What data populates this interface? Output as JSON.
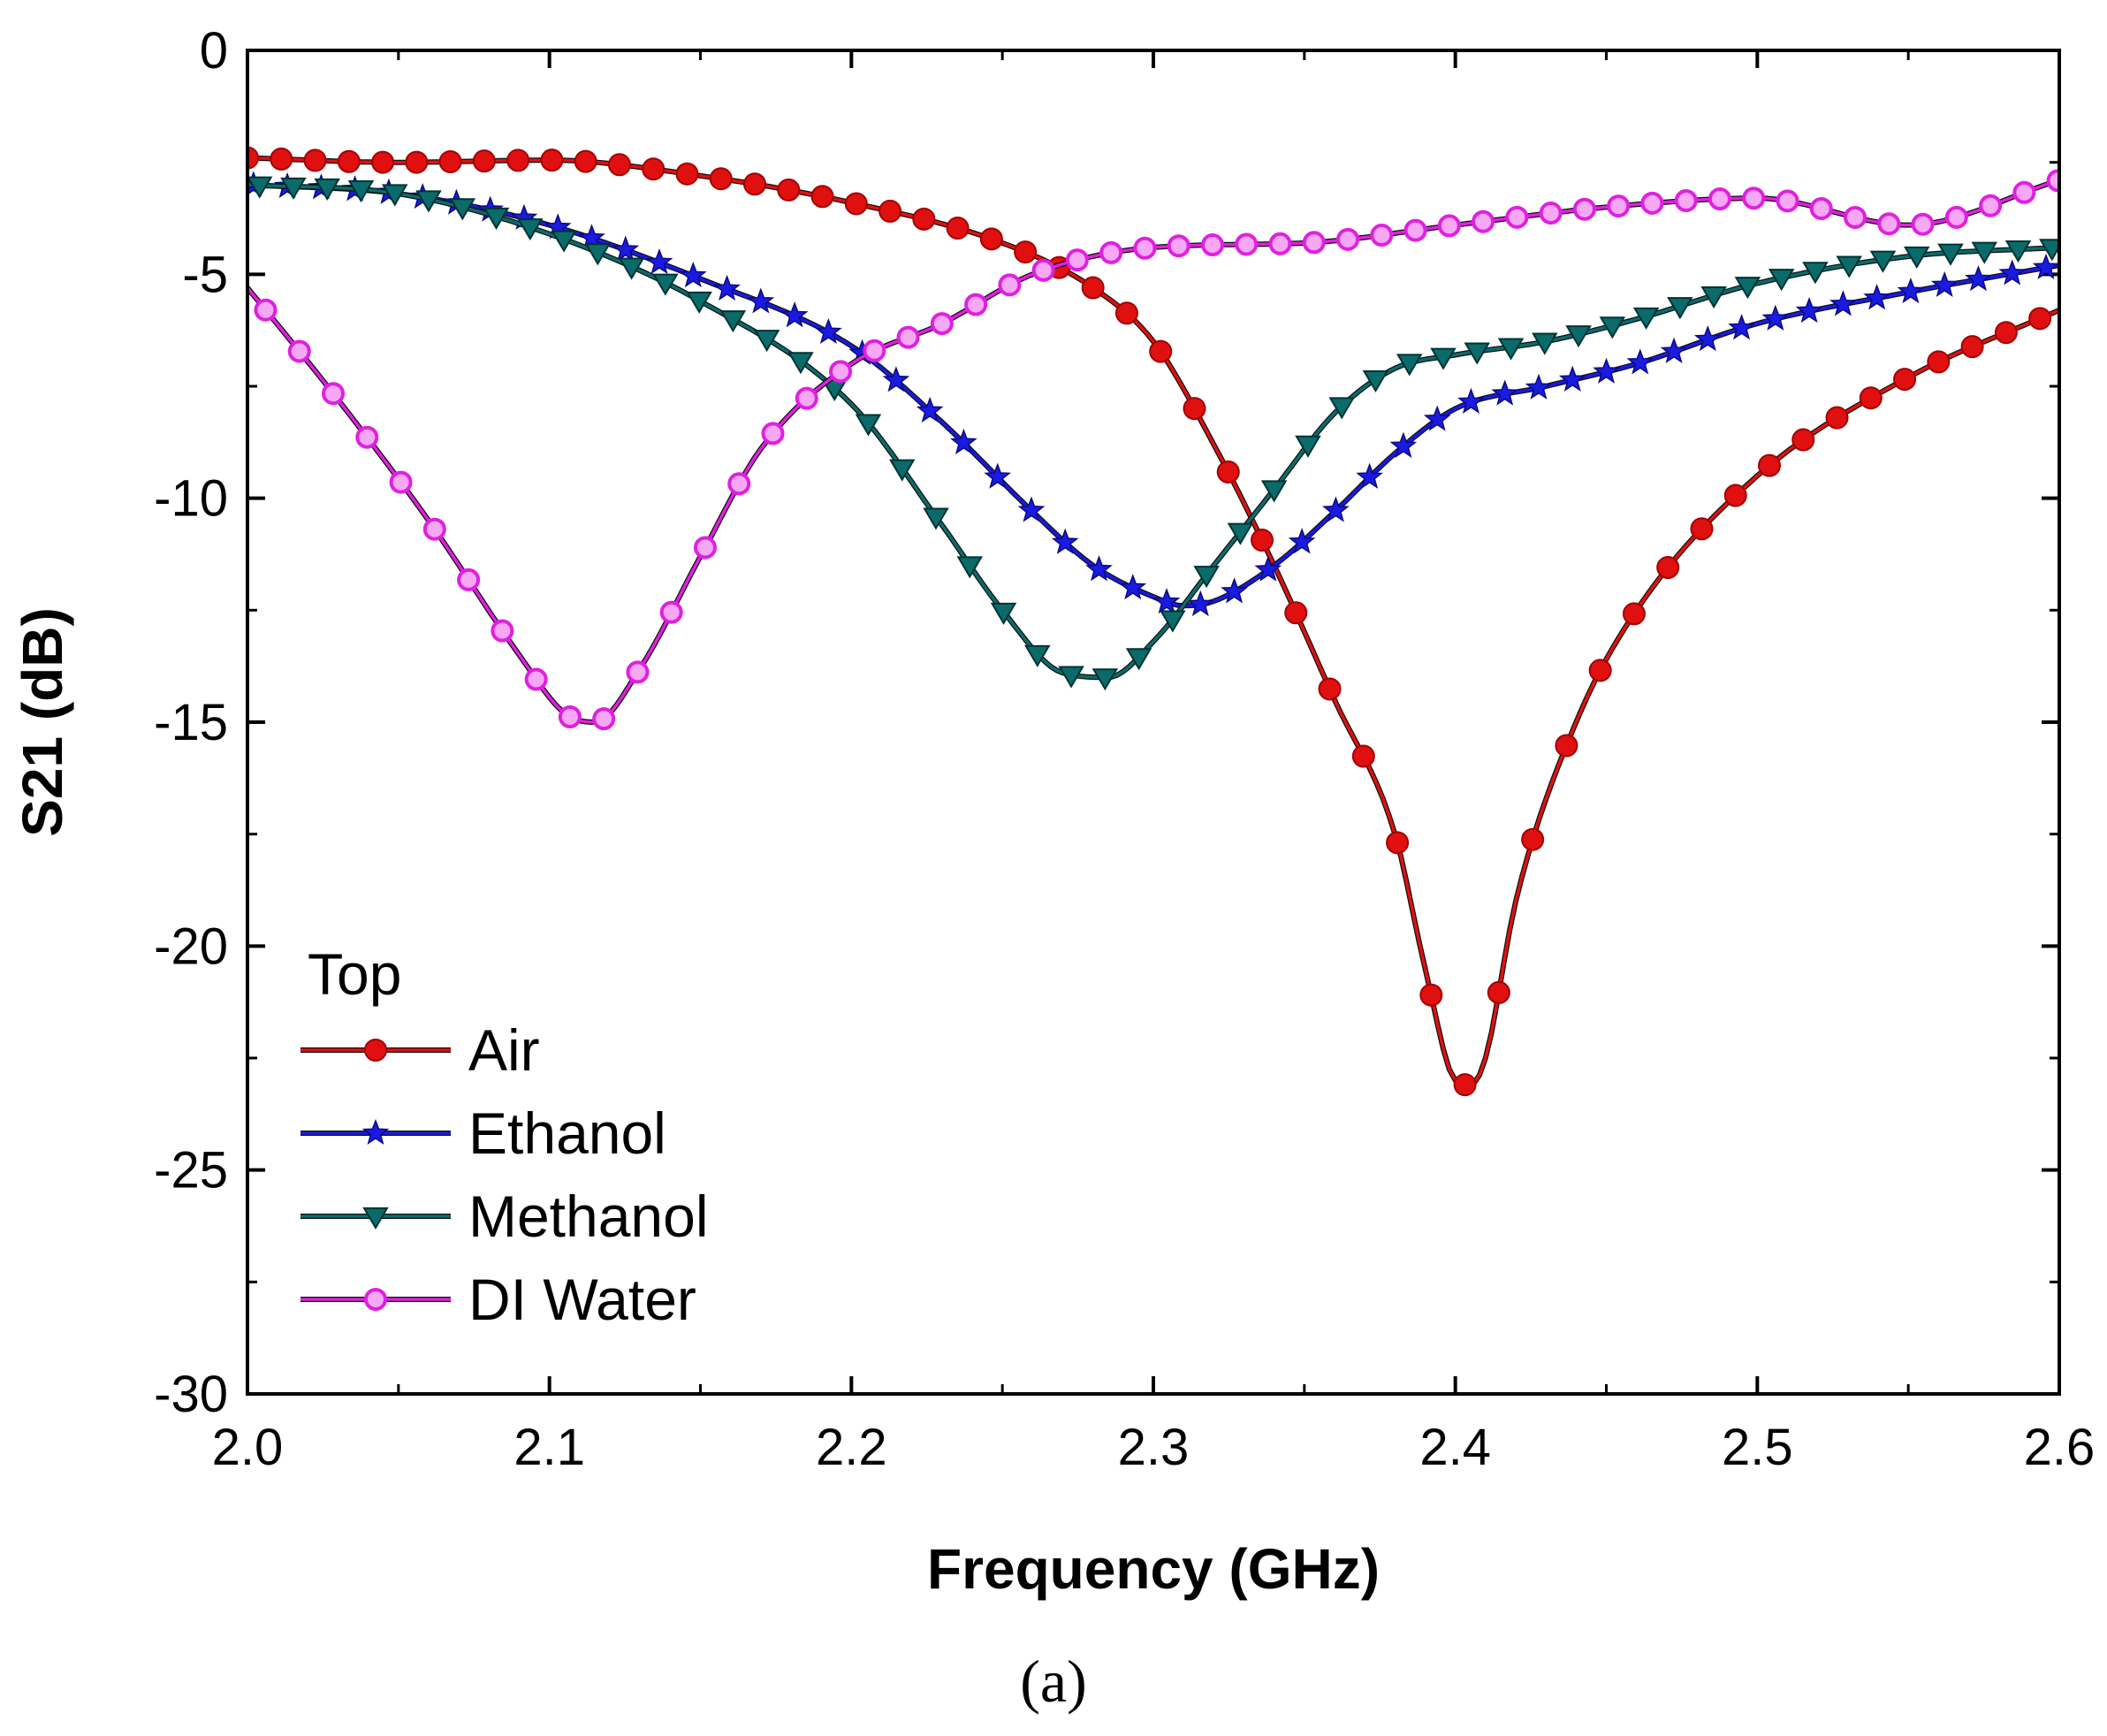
{
  "chart_data": {
    "type": "line",
    "title": "",
    "xlabel": "Frequency (GHz)",
    "ylabel": "S21 (dB)",
    "xlim": [
      2.0,
      2.6
    ],
    "ylim": [
      -30,
      0
    ],
    "xticks": [
      "2.0",
      "2.1",
      "2.2",
      "2.3",
      "2.4",
      "2.5",
      "2.6"
    ],
    "yticks": [
      "0",
      "-5",
      "-10",
      "-15",
      "-20",
      "-25",
      "-30"
    ],
    "legend_title": "Top",
    "legend_position": "bottom-left",
    "caption": "(a)",
    "series": [
      {
        "name": "Air",
        "color": "#e01010",
        "marker": "circle",
        "x": [
          2.0,
          2.05,
          2.1,
          2.15,
          2.2,
          2.25,
          2.28,
          2.3,
          2.32,
          2.34,
          2.36,
          2.38,
          2.39,
          2.4,
          2.405,
          2.41,
          2.42,
          2.44,
          2.46,
          2.5,
          2.55,
          2.6
        ],
        "y": [
          -2.4,
          -2.5,
          -2.45,
          -2.8,
          -3.4,
          -4.3,
          -5.3,
          -6.5,
          -8.8,
          -11.5,
          -14.5,
          -17.5,
          -20.5,
          -23.0,
          -23.1,
          -22.5,
          -19.0,
          -15.0,
          -12.5,
          -9.5,
          -7.3,
          -5.8
        ]
      },
      {
        "name": "Ethanol",
        "color": "#1a1ae0",
        "marker": "star",
        "x": [
          2.0,
          2.05,
          2.1,
          2.15,
          2.2,
          2.23,
          2.26,
          2.28,
          2.3,
          2.31,
          2.32,
          2.34,
          2.36,
          2.38,
          2.4,
          2.43,
          2.46,
          2.5,
          2.55,
          2.6
        ],
        "y": [
          -3.0,
          -3.2,
          -3.9,
          -5.1,
          -6.6,
          -8.3,
          -10.3,
          -11.5,
          -12.2,
          -12.4,
          -12.3,
          -11.5,
          -10.3,
          -9.0,
          -8.0,
          -7.5,
          -7.0,
          -6.1,
          -5.4,
          -4.8
        ]
      },
      {
        "name": "Methanol",
        "color": "#0b6b6b",
        "marker": "triangle-down",
        "x": [
          2.0,
          2.05,
          2.1,
          2.15,
          2.2,
          2.23,
          2.25,
          2.27,
          2.285,
          2.3,
          2.32,
          2.34,
          2.36,
          2.38,
          2.4,
          2.43,
          2.46,
          2.5,
          2.55,
          2.6
        ],
        "y": [
          -3.0,
          -3.2,
          -4.1,
          -5.6,
          -7.9,
          -10.6,
          -12.5,
          -13.9,
          -14.0,
          -13.2,
          -11.5,
          -9.8,
          -8.1,
          -7.1,
          -6.8,
          -6.5,
          -6.0,
          -5.2,
          -4.6,
          -4.4
        ]
      },
      {
        "name": "DI Water",
        "color": "#e020e0",
        "marker": "circle-open",
        "x": [
          2.0,
          2.03,
          2.06,
          2.09,
          2.105,
          2.115,
          2.13,
          2.15,
          2.17,
          2.2,
          2.23,
          2.26,
          2.3,
          2.35,
          2.4,
          2.45,
          2.5,
          2.55,
          2.6
        ],
        "y": [
          -5.3,
          -7.8,
          -10.5,
          -13.5,
          -14.8,
          -15.0,
          -13.8,
          -11.3,
          -8.9,
          -7.0,
          -6.1,
          -5.0,
          -4.4,
          -4.3,
          -3.9,
          -3.5,
          -3.3,
          -3.9,
          -2.9
        ]
      }
    ]
  }
}
